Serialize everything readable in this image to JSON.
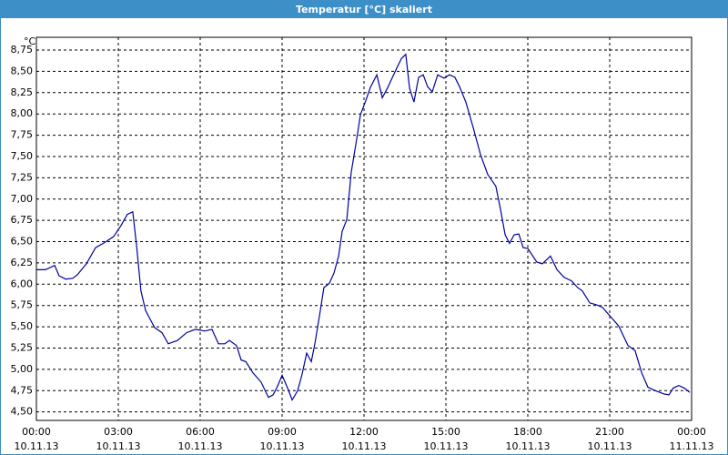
{
  "chart_data": {
    "type": "line",
    "title": "Temperatur [°C] skaliert",
    "y_label": "°C",
    "x": [
      0,
      0.33,
      0.67,
      0.83,
      1.07,
      1.33,
      1.5,
      1.83,
      2.17,
      2.5,
      2.83,
      3.1,
      3.33,
      3.53,
      3.67,
      3.83,
      4,
      4.33,
      4.6,
      4.83,
      5.17,
      5.5,
      5.83,
      6.17,
      6.43,
      6.67,
      6.9,
      7.07,
      7.33,
      7.5,
      7.67,
      7.93,
      8.23,
      8.5,
      8.67,
      8.83,
      9,
      9.2,
      9.37,
      9.57,
      9.73,
      9.9,
      10.07,
      10.2,
      10.4,
      10.53,
      10.73,
      10.9,
      11.07,
      11.2,
      11.37,
      11.53,
      11.73,
      11.87,
      12.07,
      12.23,
      12.47,
      12.67,
      12.87,
      13,
      13.2,
      13.37,
      13.53,
      13.67,
      13.83,
      14,
      14.17,
      14.33,
      14.5,
      14.7,
      14.93,
      15.13,
      15.33,
      15.5,
      15.73,
      16,
      16.27,
      16.53,
      16.83,
      17,
      17.17,
      17.33,
      17.5,
      17.67,
      17.83,
      18,
      18.33,
      18.53,
      18.83,
      19.07,
      19.33,
      19.6,
      19.83,
      20,
      20.27,
      20.5,
      20.73,
      21,
      21.33,
      21.67,
      21.93,
      22.17,
      22.4,
      22.67,
      23,
      23.17,
      23.33,
      23.53,
      23.73,
      23.93
    ],
    "values": [
      6.17,
      6.17,
      6.22,
      6.1,
      6.06,
      6.07,
      6.11,
      6.24,
      6.43,
      6.49,
      6.56,
      6.69,
      6.82,
      6.85,
      6.45,
      5.92,
      5.69,
      5.49,
      5.43,
      5.3,
      5.34,
      5.43,
      5.47,
      5.45,
      5.47,
      5.3,
      5.3,
      5.34,
      5.28,
      5.11,
      5.09,
      4.96,
      4.85,
      4.67,
      4.7,
      4.8,
      4.93,
      4.78,
      4.64,
      4.75,
      4.94,
      5.19,
      5.09,
      5.3,
      5.69,
      5.96,
      6.01,
      6.13,
      6.33,
      6.62,
      6.76,
      7.31,
      7.7,
      7.99,
      8.16,
      8.31,
      8.46,
      8.19,
      8.31,
      8.4,
      8.54,
      8.65,
      8.7,
      8.3,
      8.14,
      8.43,
      8.46,
      8.32,
      8.26,
      8.46,
      8.42,
      8.46,
      8.43,
      8.32,
      8.14,
      7.84,
      7.52,
      7.29,
      7.15,
      6.88,
      6.58,
      6.48,
      6.58,
      6.59,
      6.43,
      6.42,
      6.26,
      6.24,
      6.33,
      6.17,
      6.08,
      6.04,
      5.96,
      5.92,
      5.78,
      5.76,
      5.73,
      5.63,
      5.51,
      5.28,
      5.22,
      4.96,
      4.79,
      4.75,
      4.71,
      4.7,
      4.78,
      4.81,
      4.78,
      4.73
    ],
    "color": "#0000a0",
    "xlim": [
      0,
      24
    ],
    "xticks": [
      {
        "value": 0,
        "label": "00:00"
      },
      {
        "value": 3,
        "label": "03:00"
      },
      {
        "value": 6,
        "label": "06:00"
      },
      {
        "value": 9,
        "label": "09:00"
      },
      {
        "value": 12,
        "label": "12:00"
      },
      {
        "value": 15,
        "label": "15:00"
      },
      {
        "value": 18,
        "label": "18:00"
      },
      {
        "value": 21,
        "label": "21:00"
      },
      {
        "value": 24,
        "label": "00:00"
      }
    ],
    "xtick_dates": [
      "10.11.13",
      "10.11.13",
      "10.11.13",
      "10.11.13",
      "10.11.13",
      "10.11.13",
      "10.11.13",
      "10.11.13",
      "11.11.13"
    ],
    "ylim": [
      4.4,
      8.9
    ],
    "yticks": [
      {
        "value": 4.5,
        "label": "4,50"
      },
      {
        "value": 4.75,
        "label": "4,75"
      },
      {
        "value": 5,
        "label": "5,00"
      },
      {
        "value": 5.25,
        "label": "5,25"
      },
      {
        "value": 5.5,
        "label": "5,50"
      },
      {
        "value": 5.75,
        "label": "5,75"
      },
      {
        "value": 6,
        "label": "6,00"
      },
      {
        "value": 6.25,
        "label": "6,25"
      },
      {
        "value": 6.5,
        "label": "6,50"
      },
      {
        "value": 6.75,
        "label": "6,75"
      },
      {
        "value": 7,
        "label": "7,00"
      },
      {
        "value": 7.25,
        "label": "7,25"
      },
      {
        "value": 7.5,
        "label": "7,50"
      },
      {
        "value": 7.75,
        "label": "7,75"
      },
      {
        "value": 8,
        "label": "8,00"
      },
      {
        "value": 8.25,
        "label": "8,25"
      },
      {
        "value": 8.5,
        "label": "8,50"
      },
      {
        "value": 8.75,
        "label": "8,75"
      }
    ],
    "grid": true
  }
}
